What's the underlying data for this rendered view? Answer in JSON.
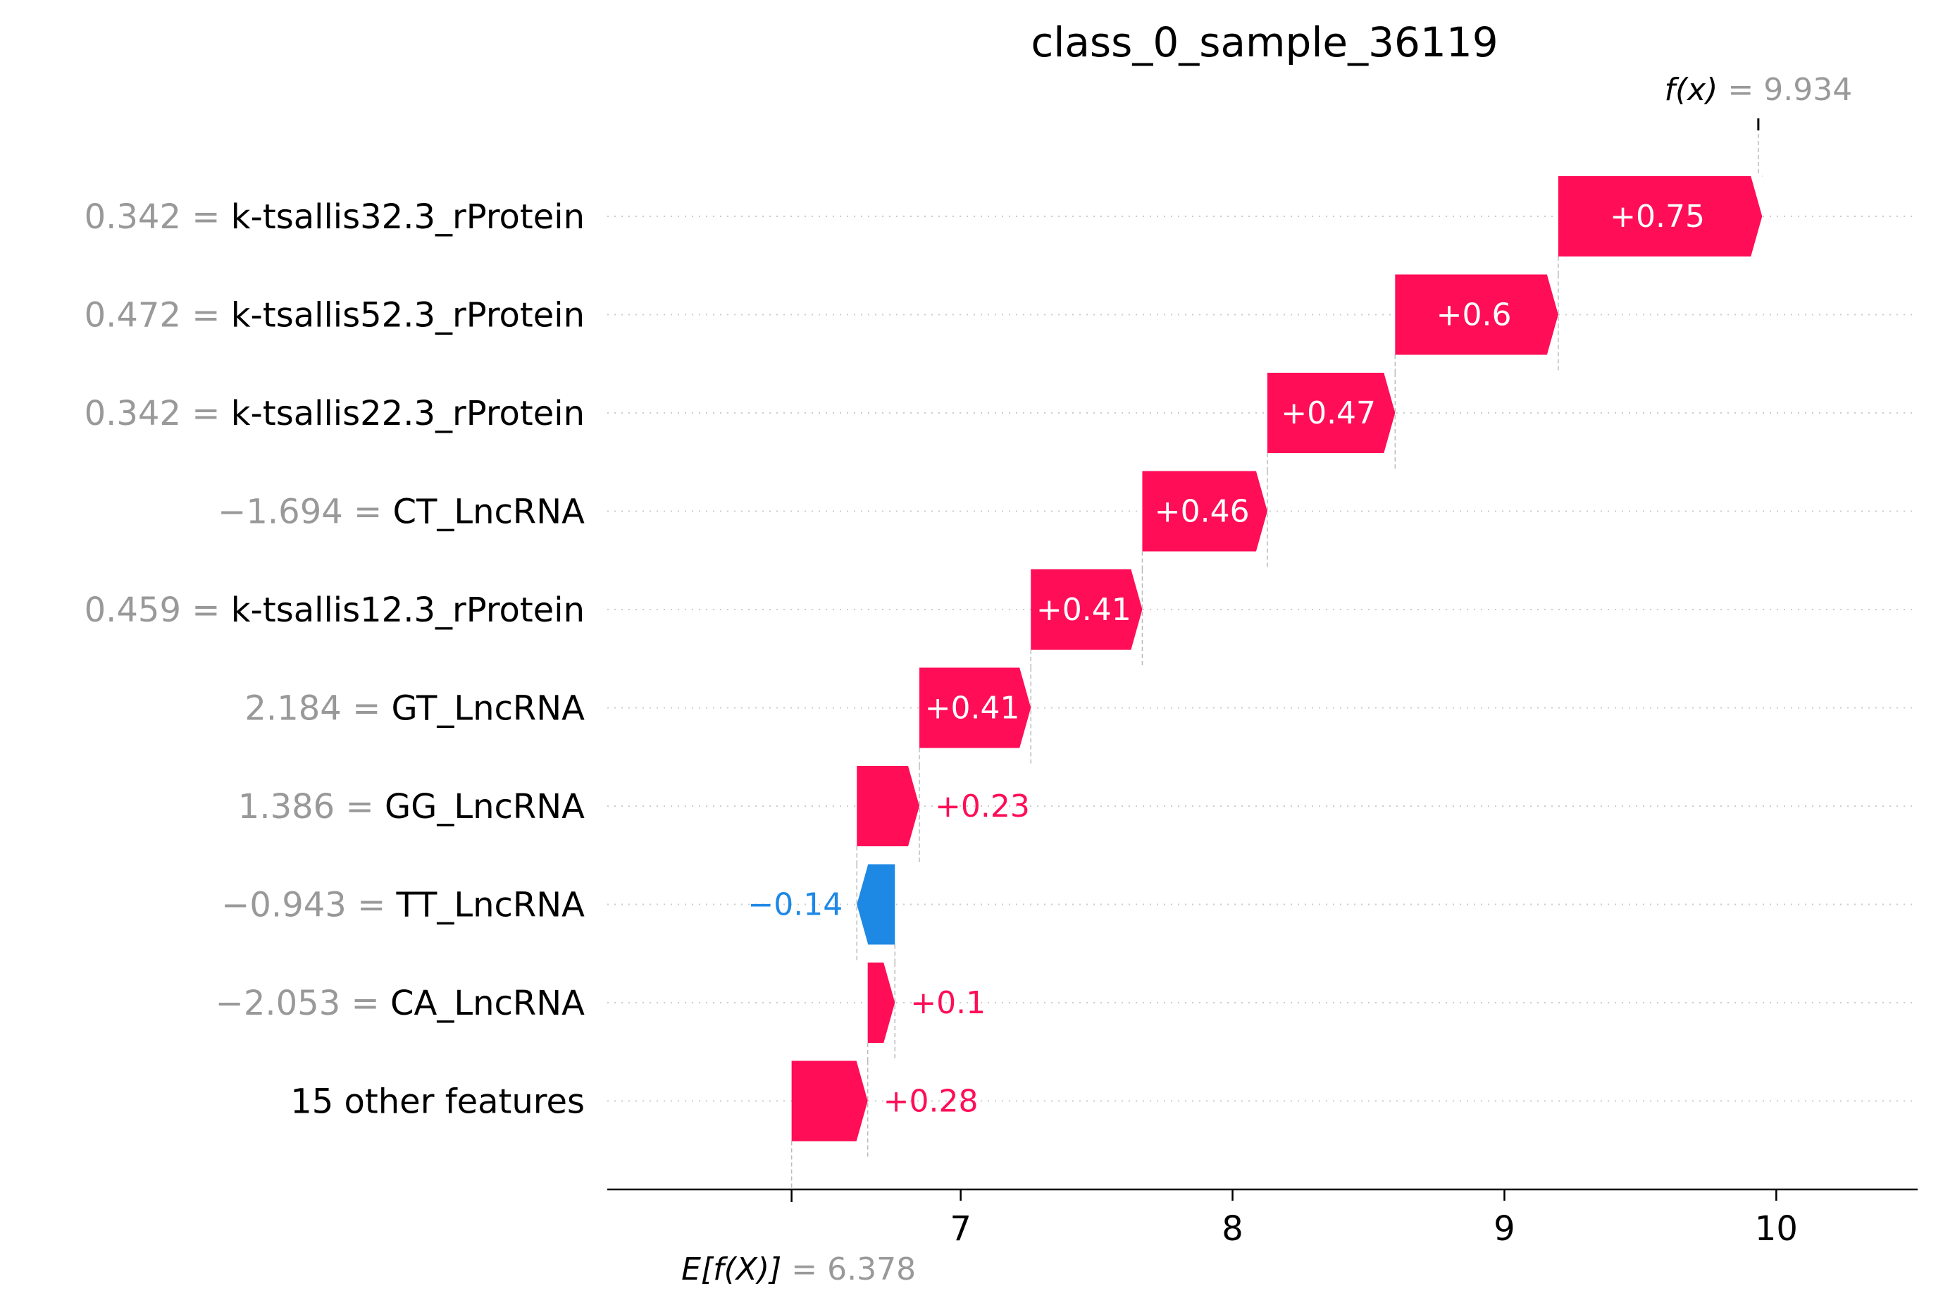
{
  "chart_data": {
    "type": "waterfall",
    "title": "class_0_sample_36119",
    "base_value": 6.378,
    "base_label": "E[f(X)]",
    "base_value_text": "= 6.378",
    "output_value": 9.934,
    "output_label": "f(x)",
    "output_value_text": "= 9.934",
    "xlim": [
      5.7,
      10.52
    ],
    "xticks": [
      7,
      8,
      9,
      10
    ],
    "xtick_labels": [
      "7",
      "8",
      "9",
      "10"
    ],
    "colors": {
      "positive": "#ff0d57",
      "negative": "#1e88e5"
    },
    "features": [
      {
        "value_text": "0.342 =",
        "name": "k-tsallis32.3_rProtein",
        "contribution": 0.75,
        "label": "+0.75"
      },
      {
        "value_text": "0.472 =",
        "name": "k-tsallis52.3_rProtein",
        "contribution": 0.6,
        "label": "+0.6"
      },
      {
        "value_text": "0.342 =",
        "name": "k-tsallis22.3_rProtein",
        "contribution": 0.47,
        "label": "+0.47"
      },
      {
        "value_text": "−1.694 =",
        "name": "CT_LncRNA",
        "contribution": 0.46,
        "label": "+0.46"
      },
      {
        "value_text": "0.459 =",
        "name": "k-tsallis12.3_rProtein",
        "contribution": 0.41,
        "label": "+0.41"
      },
      {
        "value_text": "2.184 =",
        "name": "GT_LncRNA",
        "contribution": 0.41,
        "label": "+0.41"
      },
      {
        "value_text": "1.386 =",
        "name": "GG_LncRNA",
        "contribution": 0.23,
        "label": "+0.23"
      },
      {
        "value_text": "−0.943 =",
        "name": "TT_LncRNA",
        "contribution": -0.14,
        "label": "−0.14"
      },
      {
        "value_text": "−2.053 =",
        "name": "CA_LncRNA",
        "contribution": 0.1,
        "label": "+0.1"
      },
      {
        "value_text": "",
        "name": "15 other features",
        "contribution": 0.28,
        "label": "+0.28"
      }
    ]
  }
}
